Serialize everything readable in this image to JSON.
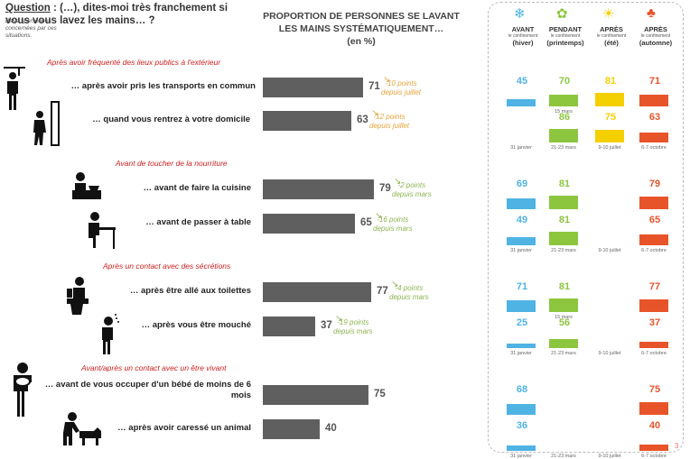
{
  "question": {
    "label": "Question",
    "text": " : (…), dites-moi très franchement si vous vous lavez les mains… ?",
    "base": "Base : personnes concernées par ces situations."
  },
  "chart_title_line1": "PROPORTION DE PERSONNES SE LAVANT",
  "chart_title_line2": "LES MAINS SYSTÉMATIQUEMENT…",
  "chart_unit": "(en %)",
  "chart_data": {
    "type": "bar",
    "orientation": "horizontal",
    "sections": [
      "Après avoir fréquenté des lieux publics à l'extérieur",
      "Avant de toucher de la nourriture",
      "Après un contact avec des sécrétions",
      "Avant/après un contact avec un être vivant"
    ],
    "categories": [
      "… après avoir pris les transports en commun",
      "… quand vous rentrez à votre domicile",
      "… avant de faire la cuisine",
      "… avant de passer à table",
      "… après être allé aux toilettes",
      "… après vous être mouché",
      "… avant de vous occuper d'un bébé de moins de 6 mois",
      "… après avoir caressé un animal"
    ],
    "values": [
      71,
      63,
      79,
      65,
      77,
      37,
      75,
      40
    ],
    "deltas": [
      {
        "l1": "-10 points",
        "l2": "depuis juillet",
        "color": "#e6a33e"
      },
      {
        "l1": "-12 points",
        "l2": "depuis juillet",
        "color": "#e6a33e"
      },
      {
        "l1": "-2 points",
        "l2": "depuis mars",
        "color": "#8db44f"
      },
      {
        "l1": "-16 points",
        "l2": "depuis mars",
        "color": "#8db44f"
      },
      {
        "l1": "-4 points",
        "l2": "depuis mars",
        "color": "#8db44f"
      },
      {
        "l1": "-19 points",
        "l2": "depuis mars",
        "color": "#8db44f"
      },
      null,
      null
    ],
    "xlim": [
      0,
      100
    ],
    "bar_color": "#5f5f5f",
    "timeline": {
      "periods": [
        {
          "name": "AVANT",
          "sub": "le confinement",
          "season": "(hiver)",
          "color": "#4fb3e3",
          "icon": "snowflake-icon"
        },
        {
          "name": "PENDANT",
          "sub": "le confinement",
          "season": "(printemps)",
          "color": "#8cc63f",
          "icon": "flower-icon"
        },
        {
          "name": "APRÈS",
          "sub": "le confinement",
          "season": "(été)",
          "color": "#f5d000",
          "icon": "sun-icon"
        },
        {
          "name": "APRÈS",
          "sub": "le confinement",
          "season": "(automne)",
          "color": "#e8542a",
          "icon": "maple-leaf-icon"
        }
      ],
      "values": [
        [
          45,
          70,
          81,
          71
        ],
        [
          null,
          86,
          75,
          63
        ],
        [
          69,
          81,
          null,
          79
        ],
        [
          49,
          81,
          null,
          65
        ],
        [
          71,
          81,
          null,
          77
        ],
        [
          25,
          56,
          null,
          37
        ],
        [
          68,
          null,
          null,
          75
        ],
        [
          36,
          null,
          null,
          40
        ]
      ],
      "date_labels": [
        [
          "",
          "15 mars",
          "",
          ""
        ],
        [
          "31 janvier",
          "21-23 mars",
          "9-10 juillet",
          "6-7 octobre"
        ],
        [
          "",
          "",
          "",
          ""
        ],
        [
          "31 janvier",
          "21-23 mars",
          "9-10 juillet",
          "6-7 octobre"
        ],
        [
          "",
          "15 mars",
          "",
          ""
        ],
        [
          "31 janvier",
          "21-23 mars",
          "9-10 juillet",
          "6-7 octobre"
        ],
        [
          "",
          "",
          "",
          ""
        ],
        [
          "31 janvier",
          "21-23 mars",
          "9-10 juillet",
          "6-7 octobre"
        ]
      ]
    }
  },
  "page_number": "3"
}
